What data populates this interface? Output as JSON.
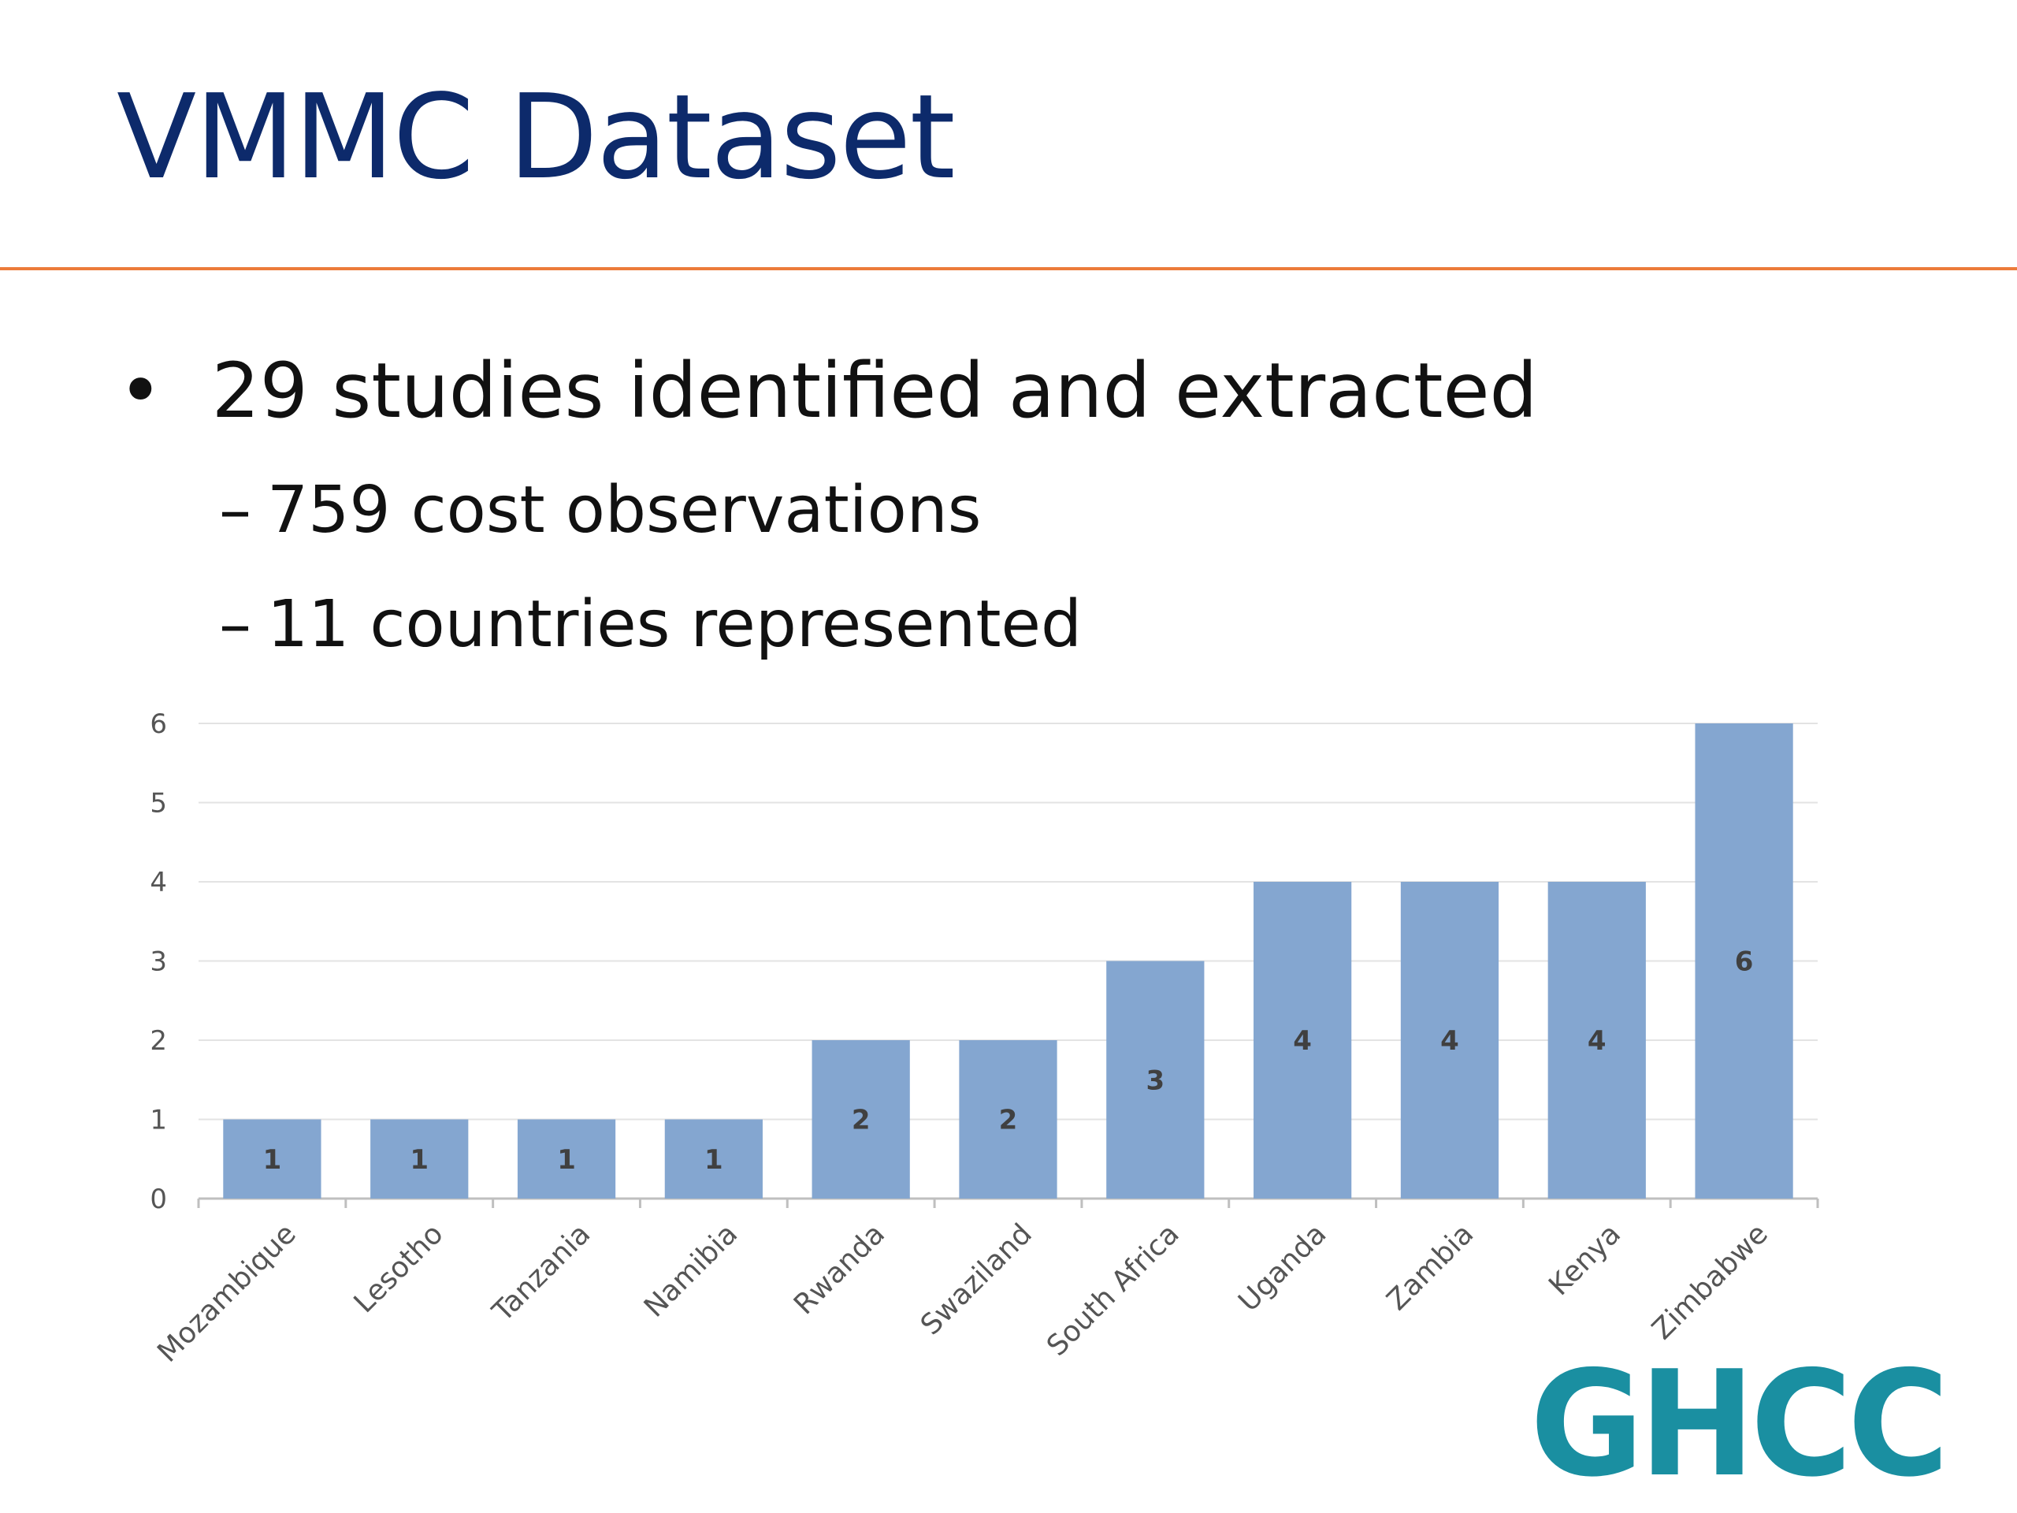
{
  "slide": {
    "title": "VMMC Dataset",
    "bullets": [
      {
        "marker": "•",
        "text": "29 studies identified and extracted"
      },
      {
        "marker": "–",
        "text": "759 cost observations"
      },
      {
        "marker": "–",
        "text": "11 countries represented"
      }
    ],
    "logo_text": "GHCC",
    "colors": {
      "title": "#0d2a6b",
      "rule": "#ec7b3a",
      "bar": "#84a6d0",
      "logo": "#1a8fa1"
    }
  },
  "chart_data": {
    "type": "bar",
    "categories": [
      "Mozambique",
      "Lesotho",
      "Tanzania",
      "Namibia",
      "Rwanda",
      "Swaziland",
      "South Africa",
      "Uganda",
      "Zambia",
      "Kenya",
      "Zimbabwe"
    ],
    "values": [
      1,
      1,
      1,
      1,
      2,
      2,
      3,
      4,
      4,
      4,
      6
    ],
    "yticks": [
      0,
      1,
      2,
      3,
      4,
      5,
      6
    ],
    "ylim": [
      0,
      6
    ],
    "grid": true,
    "data_labels": true,
    "legend": "none"
  }
}
